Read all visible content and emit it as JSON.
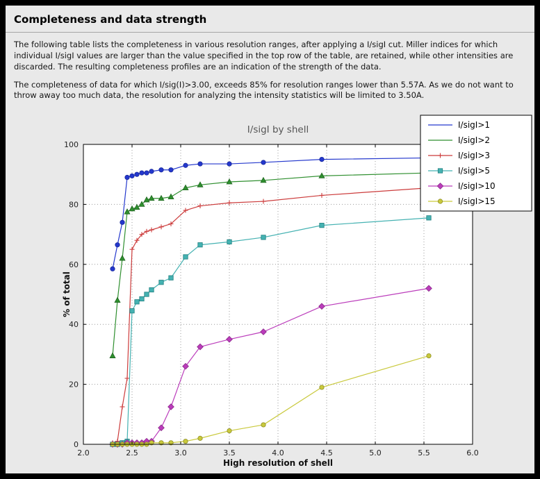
{
  "page": {
    "title": "Completeness and data strength",
    "paragraphs": [
      "The following table lists the completeness in various resolution ranges, after applying a I/sigI cut. Miller indices for which individual I/sigI values are larger than the value specified in the top row of the table, are retained, while other intensities are discarded. The resulting completeness profiles are an indication of the strength of the data.",
      "The completeness of data for which I/sig(I)>3.00, exceeds  85% for resolution ranges lower than 5.57A. As we do not want to throw away too much data, the resolution for analyzing the intensity statistics will be limited to 3.50A."
    ]
  },
  "chart_data": {
    "type": "line",
    "title": "I/sigI by shell",
    "xlabel": "High resolution of shell",
    "ylabel": "% of total",
    "xlim": [
      2.0,
      6.0
    ],
    "ylim": [
      0,
      100
    ],
    "xticks": [
      2.0,
      2.5,
      3.0,
      3.5,
      4.0,
      4.5,
      5.0,
      5.5,
      6.0
    ],
    "yticks": [
      0,
      20,
      40,
      60,
      80,
      100
    ],
    "grid": "dotted",
    "grid_color": "#999999",
    "plot_bg": "#ffffff",
    "figure_bg": "#e9e9e9",
    "legend_position": "top-right",
    "x": [
      2.3,
      2.35,
      2.4,
      2.45,
      2.5,
      2.55,
      2.6,
      2.65,
      2.7,
      2.8,
      2.9,
      3.05,
      3.2,
      3.5,
      3.85,
      4.45,
      5.55
    ],
    "series": [
      {
        "name": "I/sigI>1",
        "color": "#2438cd",
        "edge_color": "#18279a",
        "marker": "circle",
        "legend_marker": false,
        "values": [
          58.5,
          66.5,
          74,
          89,
          89.5,
          90,
          90.5,
          90.5,
          91,
          91.5,
          91.5,
          93,
          93.5,
          93.5,
          94,
          95,
          95.5
        ]
      },
      {
        "name": "I/sigI>2",
        "color": "#2f8f2f",
        "edge_color": "#1f661f",
        "marker": "triangle",
        "legend_marker": false,
        "values": [
          29.5,
          48,
          62,
          77.5,
          78.5,
          79,
          80,
          81.5,
          82,
          82,
          82.5,
          85.5,
          86.5,
          87.5,
          88,
          89.5,
          90.5
        ]
      },
      {
        "name": "I/sigI>3",
        "color": "#cc3b3b",
        "edge_color": "#cc3b3b",
        "marker": "plus",
        "legend_marker": true,
        "values": [
          0.5,
          1,
          12.5,
          22,
          65,
          68,
          70,
          71,
          71.5,
          72.5,
          73.5,
          78,
          79.5,
          80.5,
          81,
          83,
          85.5
        ]
      },
      {
        "name": "I/sigI>5",
        "color": "#45b2b2",
        "edge_color": "#1f7f7f",
        "marker": "square",
        "legend_marker": true,
        "values": [
          0,
          0,
          0.5,
          1,
          44.5,
          47.5,
          48.5,
          50,
          51.5,
          54,
          55.5,
          62.5,
          66.5,
          67.5,
          69,
          73,
          75.5
        ]
      },
      {
        "name": "I/sigI>10",
        "color": "#bb3cbb",
        "edge_color": "#8a2a8a",
        "marker": "diamond",
        "legend_marker": true,
        "values": [
          0,
          0,
          0,
          0.5,
          0.5,
          0.5,
          0.5,
          1,
          1,
          5.5,
          12.5,
          26,
          32.5,
          35,
          37.5,
          46,
          52
        ]
      },
      {
        "name": "I/sigI>15",
        "color": "#c9c93c",
        "edge_color": "#8f8f26",
        "marker": "circle",
        "legend_marker": true,
        "values": [
          0,
          0,
          0,
          0,
          0,
          0,
          0,
          0,
          0.5,
          0.5,
          0.5,
          1,
          2,
          4.5,
          6.5,
          19,
          29.5
        ]
      }
    ]
  }
}
